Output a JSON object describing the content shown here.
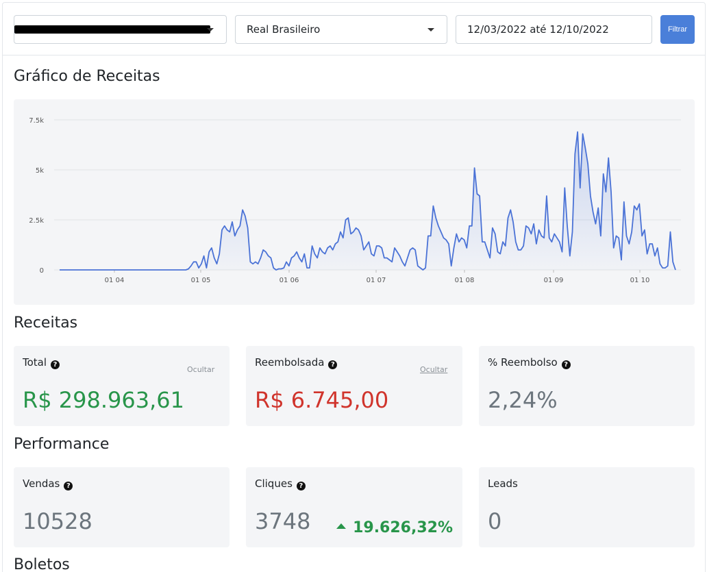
{
  "filters": {
    "product_select": "",
    "currency_select": "Real Brasileiro",
    "date_range": "12/03/2022 até 12/10/2022",
    "filter_button": "Filtrar"
  },
  "sections": {
    "chart_title": "Gráfico de Receitas",
    "revenue_title": "Receitas",
    "performance_title": "Performance",
    "boletos_title": "Boletos"
  },
  "revenue": {
    "total_label": "Total",
    "total_value": "R$ 298.963,61",
    "total_hide": "Ocultar",
    "refunded_label": "Reembolsada",
    "refunded_value": "R$ 6.745,00",
    "refunded_hide": "Ocultar",
    "refund_pct_label": "% Reembolso",
    "refund_pct_value": "2,24%"
  },
  "performance": {
    "sales_label": "Vendas",
    "sales_value": "10528",
    "clicks_label": "Cliques",
    "clicks_value": "3748",
    "clicks_delta": "19.626,32%",
    "leads_label": "Leads",
    "leads_value": "0"
  },
  "colors": {
    "accent": "#4a7fd9",
    "line": "#4a72d6",
    "positive": "#28954a",
    "negative": "#d0342c"
  },
  "chart_data": {
    "type": "area",
    "title": "",
    "xlabel": "",
    "ylabel": "",
    "ylim": [
      0,
      7500
    ],
    "y_ticks": [
      "0",
      "2.5k",
      "5k",
      "7.5k"
    ],
    "x_ticks": [
      "01 04",
      "01 05",
      "01 06",
      "01 07",
      "01 08",
      "01 09",
      "01 10"
    ],
    "grid": true,
    "series": [
      {
        "values": [
          0,
          0,
          0,
          0,
          0,
          0,
          0,
          0,
          0,
          0,
          0,
          0,
          0,
          0,
          0,
          0,
          0,
          0,
          0,
          0,
          0,
          0,
          0,
          0,
          0,
          0,
          0,
          0,
          0,
          0,
          0,
          0,
          0,
          0,
          0,
          0,
          0,
          0,
          0,
          0,
          0,
          0,
          0,
          0,
          0,
          0,
          0,
          0,
          0,
          0,
          50,
          200,
          400,
          400,
          100,
          300,
          700,
          100,
          900,
          1100,
          600,
          300,
          800,
          2000,
          2200,
          2000,
          1900,
          2400,
          1700,
          2000,
          2200,
          3000,
          2700,
          2100,
          400,
          300,
          400,
          300,
          600,
          1000,
          900,
          700,
          600,
          100,
          0,
          50,
          50,
          100,
          400,
          200,
          600,
          700,
          900,
          600,
          400,
          800,
          100,
          100,
          1200,
          800,
          600,
          1100,
          900,
          800,
          1100,
          1200,
          1000,
          1300,
          1400,
          1900,
          1600,
          2500,
          2600,
          1800,
          1900,
          2100,
          2000,
          1700,
          1000,
          1200,
          1400,
          800,
          700,
          1200,
          1200,
          1100,
          600,
          600,
          500,
          400,
          1100,
          900,
          700,
          400,
          200,
          600,
          1000,
          1100,
          1000,
          200,
          100,
          0,
          100,
          1700,
          1700,
          3200,
          2600,
          2200,
          1900,
          1600,
          1500,
          1300,
          200,
          1100,
          1800,
          1400,
          1600,
          1500,
          1100,
          2200,
          2200,
          5100,
          3800,
          3700,
          1400,
          1400,
          1000,
          600,
          2100,
          1800,
          900,
          800,
          1400,
          1200,
          2600,
          3000,
          2400,
          1400,
          1000,
          1000,
          1200,
          2200,
          2100,
          1800,
          2300,
          1300,
          2000,
          1700,
          1600,
          3700,
          1600,
          1400,
          1800,
          1600,
          1400,
          900,
          4100,
          2200,
          700,
          1900,
          5800,
          6900,
          4100,
          6800,
          6100,
          5300,
          3700,
          2900,
          2300,
          3100,
          1700,
          4800,
          3900,
          5600,
          3900,
          1100,
          1700,
          1600,
          500,
          3400,
          1700,
          1300,
          1900,
          3200,
          3000,
          3300,
          1700,
          2000,
          800,
          1300,
          1300,
          700,
          1100,
          300,
          100,
          100,
          200,
          1900,
          400,
          0
        ]
      }
    ]
  }
}
